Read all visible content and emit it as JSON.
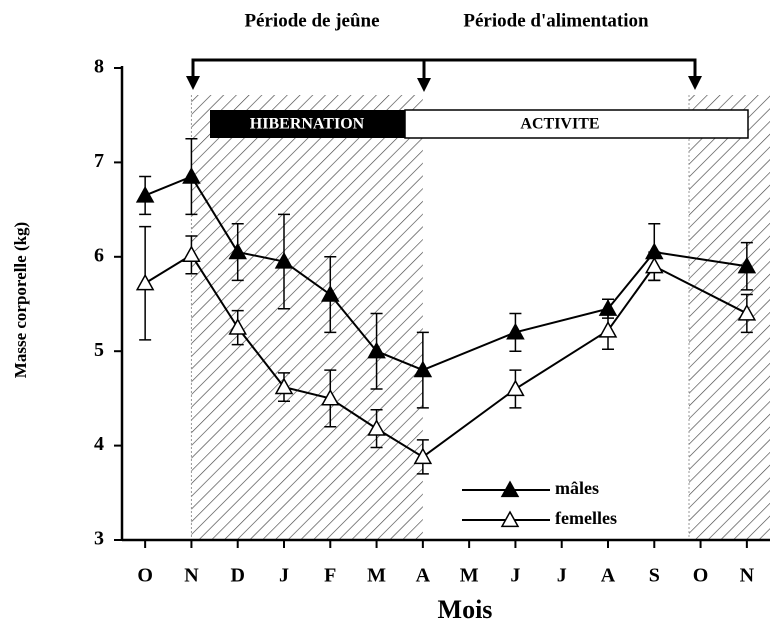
{
  "chart_data": {
    "type": "line",
    "title_left": "Période de jeûne",
    "title_right": "Période d'alimentation",
    "band_left": "HIBERNATION",
    "band_right": "ACTIVITE",
    "xlabel": "Mois",
    "ylabel": "Masse corporelle (kg)",
    "xlim": [
      -0.5,
      13.5
    ],
    "xticks": [
      {
        "value": 0,
        "label": "O"
      },
      {
        "value": 1,
        "label": "N"
      },
      {
        "value": 2,
        "label": "D"
      },
      {
        "value": 3,
        "label": "J"
      },
      {
        "value": 4,
        "label": "F"
      },
      {
        "value": 5,
        "label": "M"
      },
      {
        "value": 6,
        "label": "A"
      },
      {
        "value": 7,
        "label": "M"
      },
      {
        "value": 8,
        "label": "J"
      },
      {
        "value": 9,
        "label": "J"
      },
      {
        "value": 10,
        "label": "A"
      },
      {
        "value": 11,
        "label": "S"
      },
      {
        "value": 12,
        "label": "O"
      },
      {
        "value": 13,
        "label": "N"
      }
    ],
    "ylim": [
      3,
      8
    ],
    "yticks": [
      3,
      4,
      5,
      6,
      7,
      8
    ],
    "shaded_spans": [
      [
        1,
        6
      ],
      [
        11.75,
        13.5
      ]
    ],
    "series": [
      {
        "name": "mâles",
        "color": "#000000",
        "marker": "filled-triangle",
        "x": [
          0,
          1,
          2,
          3,
          4,
          5,
          6,
          8,
          10,
          11,
          13
        ],
        "values": [
          6.65,
          6.85,
          6.05,
          5.95,
          5.6,
          5.0,
          4.8,
          5.2,
          5.45,
          6.05,
          5.9
        ],
        "errors": [
          0.2,
          0.4,
          0.3,
          0.5,
          0.4,
          0.4,
          0.4,
          0.2,
          0.1,
          0.3,
          0.25
        ]
      },
      {
        "name": "femelles",
        "color": "#000000",
        "marker": "hollow-triangle",
        "x": [
          0,
          1,
          2,
          3,
          4,
          5,
          6,
          8,
          10,
          11,
          13
        ],
        "values": [
          5.72,
          6.02,
          5.25,
          4.62,
          4.5,
          4.18,
          3.88,
          4.6,
          5.22,
          5.9,
          5.4
        ],
        "errors": [
          0.6,
          0.2,
          0.18,
          0.15,
          0.3,
          0.2,
          0.18,
          0.2,
          0.2,
          0.15,
          0.2
        ]
      }
    ]
  }
}
